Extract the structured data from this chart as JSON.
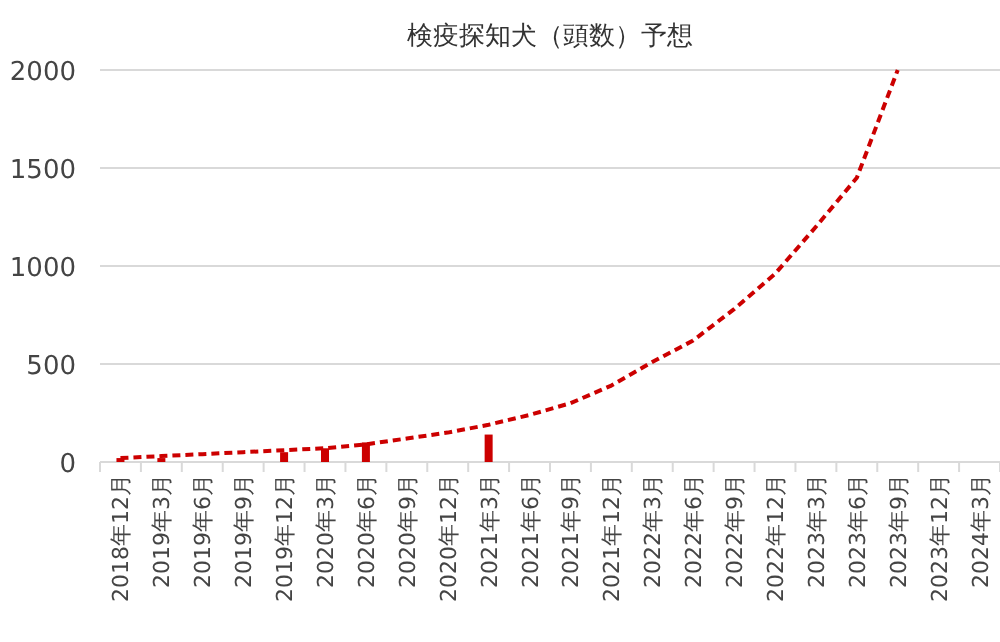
{
  "chart_data": {
    "type": "bar",
    "title": "検疫探知犬（頭数）予想",
    "categories": [
      "2018年12月",
      "2019年3月",
      "2019年6月",
      "2019年9月",
      "2019年12月",
      "2020年3月",
      "2020年6月",
      "2020年9月",
      "2020年12月",
      "2021年3月",
      "2021年6月",
      "2021年9月",
      "2021年12月",
      "2022年3月",
      "2022年6月",
      "2022年9月",
      "2022年12月",
      "2023年3月",
      "2023年6月",
      "2023年9月",
      "2023年12月",
      "2024年3月"
    ],
    "series": [
      {
        "color": "#cc0000",
        "values": [
          20,
          20,
          null,
          null,
          50,
          70,
          100,
          null,
          null,
          140,
          null,
          null,
          null,
          null,
          null,
          null,
          null,
          null,
          null,
          null,
          null,
          null
        ]
      },
      {
        "type": "line",
        "color": "#cc0000",
        "line_style": "dashed",
        "marker": "none",
        "values": [
          20,
          30,
          40,
          50,
          60,
          70,
          90,
          120,
          150,
          190,
          240,
          300,
          390,
          510,
          620,
          780,
          960,
          1200,
          1450,
          2000,
          null,
          null
        ]
      }
    ],
    "ylim": [
      0,
      2000
    ],
    "yticks": [
      0,
      500,
      1000,
      1500,
      2000
    ],
    "grid": "y"
  }
}
